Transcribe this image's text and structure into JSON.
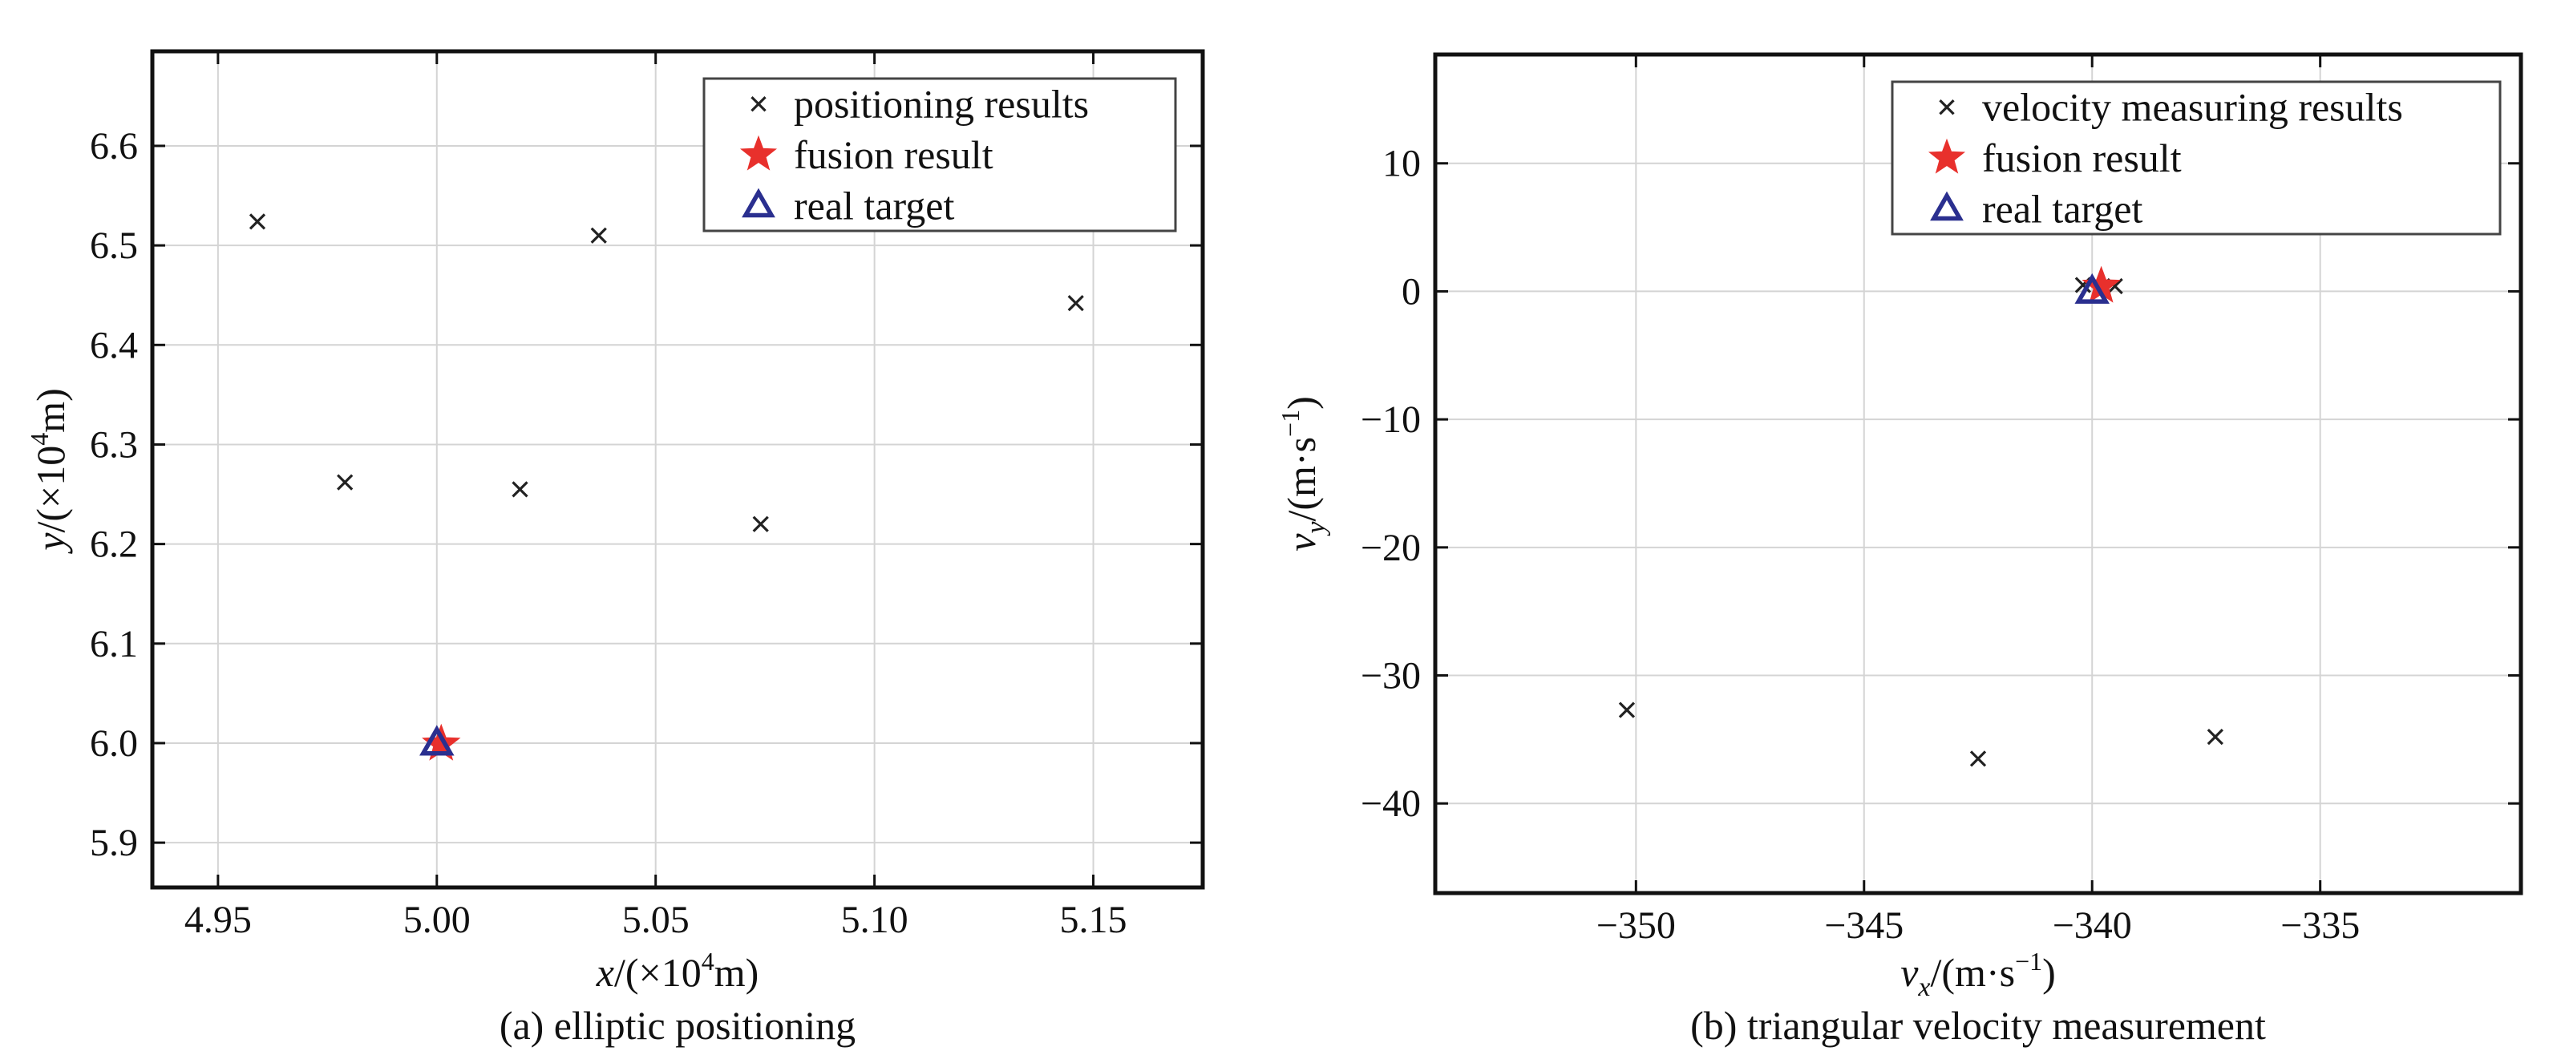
{
  "chart_data": [
    {
      "type": "scatter",
      "caption": "(a) elliptic positioning",
      "xlabel": {
        "var": "x",
        "unit": "/(×10",
        "sup": "4",
        "tail": "m)"
      },
      "ylabel": {
        "var": "y",
        "unit": "/(×10",
        "sup": "4",
        "tail": "m)"
      },
      "xlim": [
        4.935,
        5.175
      ],
      "ylim": [
        5.855,
        6.695
      ],
      "xticks": [
        4.95,
        5.0,
        5.05,
        5.1,
        5.15
      ],
      "xtick_labels": [
        "4.95",
        "5.00",
        "5.05",
        "5.10",
        "5.15"
      ],
      "yticks": [
        5.9,
        6.0,
        6.1,
        6.2,
        6.3,
        6.4,
        6.5,
        6.6
      ],
      "ytick_labels": [
        "5.9",
        "6.0",
        "6.1",
        "6.2",
        "6.3",
        "6.4",
        "6.5",
        "6.6"
      ],
      "grid": true,
      "legend_position": "top-right",
      "series": [
        {
          "name": "positioning results",
          "marker": "x",
          "color": "#222222",
          "points": [
            [
              4.959,
              6.524
            ],
            [
              4.979,
              6.262
            ],
            [
              5.019,
              6.255
            ],
            [
              5.037,
              6.51
            ],
            [
              5.074,
              6.22
            ],
            [
              5.146,
              6.442
            ]
          ]
        },
        {
          "name": "fusion result",
          "marker": "star",
          "color": "#e8302c",
          "points": [
            [
              5.001,
              5.999
            ]
          ]
        },
        {
          "name": "real target",
          "marker": "triangle",
          "color": "#2a2f8f",
          "points": [
            [
              5.0,
              6.0
            ]
          ]
        }
      ]
    },
    {
      "type": "scatter",
      "caption": "(b) triangular velocity measurement",
      "xlabel": {
        "var": "v",
        "sub": "x",
        "unit": "/(m·s",
        "sup": "−1",
        "tail": ")"
      },
      "ylabel": {
        "var": "v",
        "sub": "y",
        "unit": "/(m·s",
        "sup": "−1",
        "tail": ")"
      },
      "xlim": [
        -354.4,
        -330.6
      ],
      "ylim": [
        -47,
        18.5
      ],
      "xticks": [
        -350,
        -345,
        -340,
        -335
      ],
      "xtick_labels": [
        "−350",
        "−345",
        "−340",
        "−335"
      ],
      "yticks": [
        -40,
        -30,
        -20,
        -10,
        0,
        10
      ],
      "ytick_labels": [
        "−40",
        "−30",
        "−20",
        "−10",
        "0",
        "10"
      ],
      "grid": true,
      "legend_position": "top-right",
      "series": [
        {
          "name": "velocity measuring results",
          "marker": "x",
          "color": "#222222",
          "points": [
            [
              -340.2,
              0.5
            ],
            [
              -339.5,
              0.4
            ],
            [
              -350.2,
              -32.7
            ],
            [
              -342.5,
              -36.5
            ],
            [
              -337.3,
              -34.8
            ]
          ]
        },
        {
          "name": "fusion result",
          "marker": "star",
          "color": "#e8302c",
          "points": [
            [
              -339.8,
              0.4
            ]
          ]
        },
        {
          "name": "real target",
          "marker": "triangle",
          "color": "#2a2f8f",
          "points": [
            [
              -340.0,
              0.0
            ]
          ]
        }
      ]
    }
  ]
}
